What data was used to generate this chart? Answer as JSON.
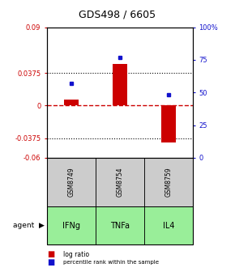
{
  "title": "GDS498 / 6605",
  "samples": [
    "GSM8749",
    "GSM8754",
    "GSM8759"
  ],
  "agents": [
    "IFNg",
    "TNFa",
    "IL4"
  ],
  "log_ratios": [
    0.007,
    0.048,
    -0.042
  ],
  "percentile_ranks_pct": [
    57,
    77,
    48
  ],
  "ylim_left": [
    -0.06,
    0.09
  ],
  "ylim_right": [
    0,
    100
  ],
  "yticks_left": [
    -0.06,
    -0.0375,
    0,
    0.0375,
    0.09
  ],
  "yticks_right": [
    0,
    25,
    50,
    75,
    100
  ],
  "ytick_labels_left": [
    "-0.06",
    "-0.0375",
    "0",
    "0.0375",
    "0.09"
  ],
  "ytick_labels_right": [
    "0",
    "25",
    "50",
    "75",
    "100%"
  ],
  "hlines": [
    0.0375,
    -0.0375
  ],
  "bar_color": "#cc0000",
  "dot_color": "#1111cc",
  "sample_bg": "#cccccc",
  "agent_bg_color": "#99ee99",
  "legend_log_color": "#cc0000",
  "legend_pct_color": "#1111cc",
  "bar_width": 0.3
}
